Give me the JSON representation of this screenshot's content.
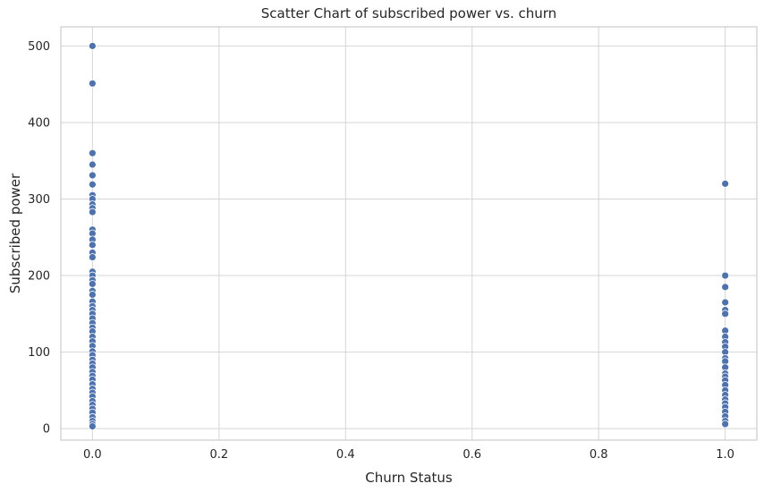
{
  "chart_data": {
    "type": "scatter",
    "title": "Scatter Chart of subscribed power vs. churn",
    "xlabel": "Churn Status",
    "ylabel": "Subscribed power",
    "xlim": [
      -0.05,
      1.05
    ],
    "ylim": [
      -15,
      525
    ],
    "x_ticks": [
      0.0,
      0.2,
      0.4,
      0.6,
      0.8,
      1.0
    ],
    "x_tick_labels": [
      "0.0",
      "0.2",
      "0.4",
      "0.6",
      "0.8",
      "1.0"
    ],
    "y_ticks": [
      0,
      100,
      200,
      300,
      400,
      500
    ],
    "y_tick_labels": [
      "0",
      "100",
      "200",
      "300",
      "400",
      "500"
    ],
    "grid": true,
    "point_color": "#4c72b0",
    "series": [
      {
        "points": [
          {
            "x": 0,
            "y": 500
          },
          {
            "x": 0,
            "y": 451
          },
          {
            "x": 0,
            "y": 360
          },
          {
            "x": 0,
            "y": 345
          },
          {
            "x": 0,
            "y": 331
          },
          {
            "x": 0,
            "y": 319
          },
          {
            "x": 0,
            "y": 305
          },
          {
            "x": 0,
            "y": 300
          },
          {
            "x": 0,
            "y": 293
          },
          {
            "x": 0,
            "y": 288
          },
          {
            "x": 0,
            "y": 283
          },
          {
            "x": 0,
            "y": 260
          },
          {
            "x": 0,
            "y": 255
          },
          {
            "x": 0,
            "y": 247
          },
          {
            "x": 0,
            "y": 240
          },
          {
            "x": 0,
            "y": 230
          },
          {
            "x": 0,
            "y": 224
          },
          {
            "x": 0,
            "y": 205
          },
          {
            "x": 0,
            "y": 200
          },
          {
            "x": 0,
            "y": 194
          },
          {
            "x": 0,
            "y": 189
          },
          {
            "x": 0,
            "y": 180
          },
          {
            "x": 0,
            "y": 175
          },
          {
            "x": 0,
            "y": 166
          },
          {
            "x": 0,
            "y": 160
          },
          {
            "x": 0,
            "y": 155
          },
          {
            "x": 0,
            "y": 150
          },
          {
            "x": 0,
            "y": 144
          },
          {
            "x": 0,
            "y": 138
          },
          {
            "x": 0,
            "y": 132
          },
          {
            "x": 0,
            "y": 127
          },
          {
            "x": 0,
            "y": 120
          },
          {
            "x": 0,
            "y": 114
          },
          {
            "x": 0,
            "y": 108
          },
          {
            "x": 0,
            "y": 101
          },
          {
            "x": 0,
            "y": 96
          },
          {
            "x": 0,
            "y": 90
          },
          {
            "x": 0,
            "y": 85
          },
          {
            "x": 0,
            "y": 80
          },
          {
            "x": 0,
            "y": 74
          },
          {
            "x": 0,
            "y": 69
          },
          {
            "x": 0,
            "y": 64
          },
          {
            "x": 0,
            "y": 58
          },
          {
            "x": 0,
            "y": 52
          },
          {
            "x": 0,
            "y": 47
          },
          {
            "x": 0,
            "y": 42
          },
          {
            "x": 0,
            "y": 36
          },
          {
            "x": 0,
            "y": 31
          },
          {
            "x": 0,
            "y": 26
          },
          {
            "x": 0,
            "y": 21
          },
          {
            "x": 0,
            "y": 15
          },
          {
            "x": 0,
            "y": 10
          },
          {
            "x": 0,
            "y": 6
          },
          {
            "x": 0,
            "y": 3
          },
          {
            "x": 1,
            "y": 320
          },
          {
            "x": 1,
            "y": 200
          },
          {
            "x": 1,
            "y": 185
          },
          {
            "x": 1,
            "y": 165
          },
          {
            "x": 1,
            "y": 155
          },
          {
            "x": 1,
            "y": 150
          },
          {
            "x": 1,
            "y": 128
          },
          {
            "x": 1,
            "y": 120
          },
          {
            "x": 1,
            "y": 113
          },
          {
            "x": 1,
            "y": 107
          },
          {
            "x": 1,
            "y": 100
          },
          {
            "x": 1,
            "y": 92
          },
          {
            "x": 1,
            "y": 88
          },
          {
            "x": 1,
            "y": 80
          },
          {
            "x": 1,
            "y": 72
          },
          {
            "x": 1,
            "y": 68
          },
          {
            "x": 1,
            "y": 63
          },
          {
            "x": 1,
            "y": 57
          },
          {
            "x": 1,
            "y": 50
          },
          {
            "x": 1,
            "y": 44
          },
          {
            "x": 1,
            "y": 38
          },
          {
            "x": 1,
            "y": 33
          },
          {
            "x": 1,
            "y": 28
          },
          {
            "x": 1,
            "y": 22
          },
          {
            "x": 1,
            "y": 16
          },
          {
            "x": 1,
            "y": 10
          },
          {
            "x": 1,
            "y": 6
          }
        ]
      }
    ]
  }
}
